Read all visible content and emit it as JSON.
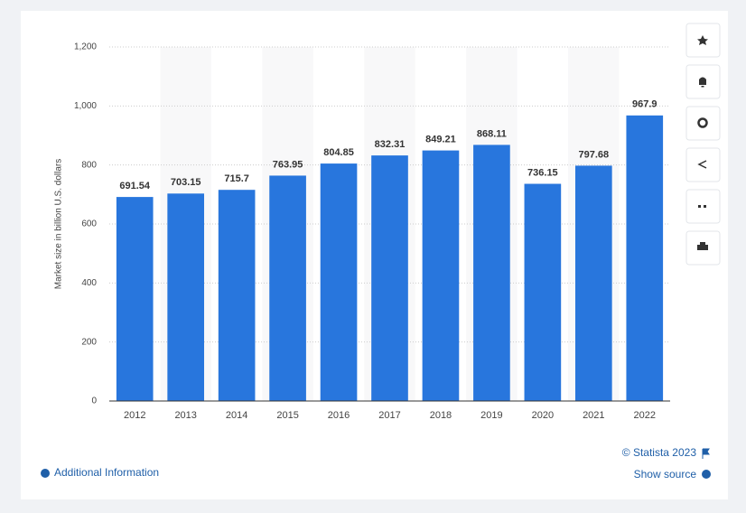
{
  "chart_data": {
    "type": "bar",
    "y_axis_label": "Market size in billion U.S. dollars",
    "categories": [
      "2012",
      "2013",
      "2014",
      "2015",
      "2016",
      "2017",
      "2018",
      "2019",
      "2020",
      "2021",
      "2022"
    ],
    "values": [
      691.54,
      703.15,
      715.7,
      763.95,
      804.85,
      832.31,
      849.21,
      868.11,
      736.15,
      797.68,
      967.9
    ],
    "color": "#2876dd",
    "ylim": [
      0,
      1200
    ],
    "yticks": [
      0,
      200,
      400,
      600,
      800,
      {
        "value": 1000,
        "label": "1,000"
      },
      {
        "value": 1200,
        "label": "1,200"
      }
    ],
    "grid": true
  },
  "footer": {
    "copyright": "© Statista 2023",
    "show_source": "Show source",
    "additional_information": "Additional Information"
  }
}
